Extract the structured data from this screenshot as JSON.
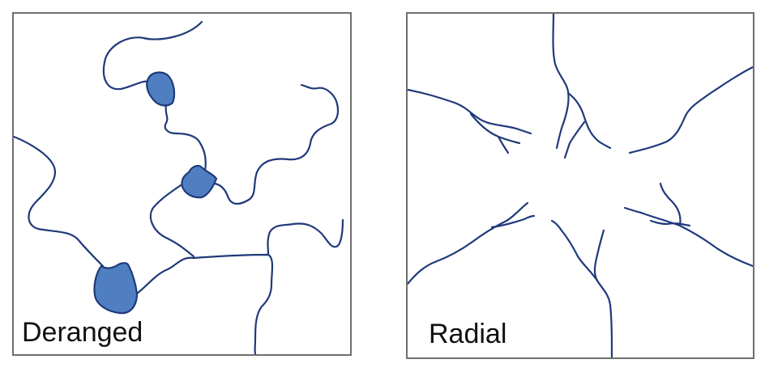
{
  "panels": {
    "deranged": {
      "label": "Deranged",
      "stream_color": "#1f3a7a",
      "lake_color": "#4f7fc0",
      "lakes": 3
    },
    "radial": {
      "label": "Radial",
      "stream_color": "#1f3a7a"
    }
  }
}
